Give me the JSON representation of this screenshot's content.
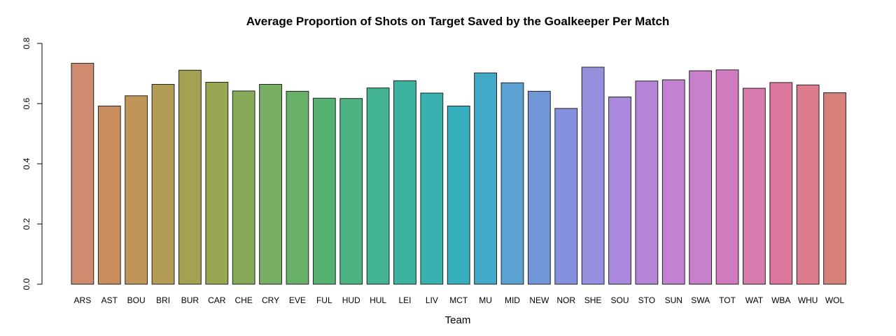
{
  "chart_data": {
    "type": "bar",
    "title": "Average Proportion of Shots on Target Saved by the Goalkeeper Per Match",
    "xlabel": "Team",
    "ylabel": "",
    "ylim": [
      0,
      0.8
    ],
    "yticks": [
      0.0,
      0.2,
      0.4,
      0.6,
      0.8
    ],
    "ytick_labels": [
      "0.0",
      "0.2",
      "0.4",
      "0.6",
      "0.8"
    ],
    "grid": false,
    "legend": "none",
    "categories": [
      "ARS",
      "AST",
      "BOU",
      "BRI",
      "BUR",
      "CAR",
      "CHE",
      "CRY",
      "EVE",
      "FUL",
      "HUD",
      "HUL",
      "LEI",
      "LIV",
      "MCT",
      "MU",
      "MID",
      "NEW",
      "NOR",
      "SHE",
      "SOU",
      "STO",
      "SUN",
      "SWA",
      "TOT",
      "WAT",
      "WBA",
      "WHU",
      "WOL"
    ],
    "values": [
      0.734,
      0.592,
      0.626,
      0.664,
      0.711,
      0.671,
      0.642,
      0.664,
      0.641,
      0.618,
      0.617,
      0.652,
      0.676,
      0.635,
      0.592,
      0.702,
      0.669,
      0.641,
      0.584,
      0.721,
      0.622,
      0.675,
      0.679,
      0.709,
      0.712,
      0.651,
      0.67,
      0.662,
      0.636
    ],
    "colors": [
      "#CE8B6F",
      "#C98E5F",
      "#BF955A",
      "#B29C56",
      "#A4A152",
      "#97A651",
      "#86AA59",
      "#76AE62",
      "#68B06A",
      "#55B272",
      "#4CB383",
      "#42B493",
      "#3CB3A1",
      "#39B1B1",
      "#37AFBE",
      "#43A9C8",
      "#5BA1D1",
      "#7297D8",
      "#8591DF",
      "#9790DF",
      "#AA88DC",
      "#B785D8",
      "#C281D1",
      "#C980CB",
      "#D07BBF",
      "#D77AAE",
      "#DC789E",
      "#DD7C8C",
      "#D8817B"
    ]
  }
}
